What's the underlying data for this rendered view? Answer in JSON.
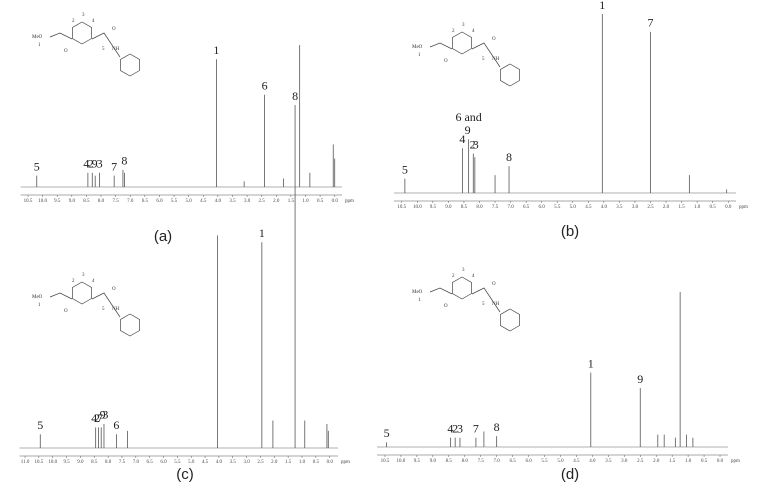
{
  "chart_data": [
    {
      "type": "stem",
      "panel_label": "(a)",
      "x_label": "ppm",
      "xlim": [
        10.75,
        -0.25
      ],
      "xticks": [
        10.5,
        {
          "value": 10,
          "label": "10.0"
        },
        9.5,
        {
          "value": 9,
          "label": "9.0"
        },
        8.5,
        {
          "value": 8,
          "label": "8.0"
        },
        7.5,
        {
          "value": 7,
          "label": "7.0"
        },
        6.5,
        {
          "value": 6,
          "label": "6.0"
        },
        5.5,
        {
          "value": 5,
          "label": "5.0"
        },
        4.5,
        {
          "value": 4,
          "label": "4.0"
        },
        3.5,
        {
          "value": 3,
          "label": "3.0"
        },
        2.5,
        {
          "value": 2,
          "label": "2.0"
        },
        1.5,
        {
          "value": 1,
          "label": "1.0"
        },
        0.5,
        {
          "value": 0,
          "label": "0.0"
        }
      ],
      "x": [
        10.2,
        8.45,
        8.3,
        8.2,
        8.05,
        7.55,
        7.25,
        7.2,
        4.05,
        3.1,
        2.4,
        1.75,
        1.2,
        0.85,
        0.05,
        0.0
      ],
      "values": [
        0.08,
        0.1,
        0.1,
        0.08,
        0.1,
        0.08,
        0.12,
        0.1,
        0.9,
        0.04,
        0.65,
        0.06,
        1.0,
        0.1,
        0.3,
        0.2
      ],
      "annotations": [
        {
          "text": "5",
          "x": 10.2
        },
        {
          "text": "4",
          "x": 8.5
        },
        {
          "text": "2",
          "x": 8.35
        },
        {
          "text": "9",
          "x": 8.22
        },
        {
          "text": "3",
          "x": 8.05
        },
        {
          "text": "7",
          "x": 7.55
        },
        {
          "text": "8",
          "x": 7.2
        },
        {
          "text": "1",
          "x": 4.05
        },
        {
          "text": "6",
          "x": 2.4
        }
      ],
      "structure_labels": [
        "MeO",
        "1",
        "2",
        "3",
        "4",
        "5",
        "NH",
        "O",
        "O"
      ]
    },
    {
      "type": "stem",
      "panel_label": "(b)",
      "x_label": "ppm",
      "xlim": [
        10.75,
        -0.25
      ],
      "xticks": [
        10.5,
        {
          "value": 10,
          "label": "10.0"
        },
        9.5,
        {
          "value": 9,
          "label": "9.0"
        },
        8.5,
        {
          "value": 8,
          "label": "8.0"
        },
        7.5,
        {
          "value": 7,
          "label": "7.0"
        },
        6.5,
        {
          "value": 6,
          "label": "6.0"
        },
        5.5,
        {
          "value": 5,
          "label": "5.0"
        },
        4.5,
        {
          "value": 4,
          "label": "4.0"
        },
        3.5,
        {
          "value": 3,
          "label": "3.0"
        },
        2.5,
        {
          "value": 2,
          "label": "2.0"
        },
        1.5,
        {
          "value": 1,
          "label": "1.0"
        },
        0.5,
        {
          "value": 0,
          "label": "0.0"
        }
      ],
      "x": [
        10.4,
        8.55,
        8.35,
        8.2,
        8.15,
        7.5,
        7.05,
        4.05,
        2.5,
        1.25,
        0.05
      ],
      "values": [
        0.08,
        0.25,
        0.3,
        0.22,
        0.2,
        0.1,
        0.15,
        1.0,
        0.9,
        0.1,
        0.02
      ],
      "annotations": [
        {
          "text": "5",
          "x": 10.4
        },
        {
          "text": "4",
          "x": 8.55
        },
        {
          "text": "2",
          "x": 8.22
        },
        {
          "text": "3",
          "x": 8.12
        },
        {
          "text": "9",
          "x": 8.38
        },
        {
          "text": "6 and",
          "x": 8.35
        },
        {
          "text": "8",
          "x": 7.05
        },
        {
          "text": "1",
          "x": 4.05
        },
        {
          "text": "7",
          "x": 2.5
        }
      ],
      "structure_labels": [
        "MeO",
        "1",
        "2",
        "3",
        "4",
        "5",
        "NH",
        "O",
        "O"
      ]
    },
    {
      "type": "stem",
      "panel_label": "(c)",
      "x_label": "ppm",
      "xlim": [
        11.2,
        -0.3
      ],
      "xticks": [
        {
          "value": 11,
          "label": "11.0"
        },
        10.5,
        {
          "value": 10,
          "label": "10.0"
        },
        9.5,
        {
          "value": 9,
          "label": "9.0"
        },
        8.5,
        {
          "value": 8,
          "label": "8.0"
        },
        7.5,
        {
          "value": 7,
          "label": "7.0"
        },
        6.5,
        {
          "value": 6,
          "label": "6.0"
        },
        5.5,
        {
          "value": 5,
          "label": "5.0"
        },
        4.5,
        {
          "value": 4,
          "label": "4.0"
        },
        3.5,
        {
          "value": 3,
          "label": "3.0"
        },
        2.5,
        {
          "value": 2,
          "label": "2.0"
        },
        1.5,
        {
          "value": 1,
          "label": "1.0"
        },
        0.5,
        {
          "value": 0,
          "label": "0.0"
        }
      ],
      "x": [
        10.45,
        8.45,
        8.35,
        8.25,
        8.15,
        7.7,
        7.3,
        4.05,
        2.45,
        2.05,
        1.25,
        0.9,
        0.1,
        0.05
      ],
      "values": [
        0.04,
        0.06,
        0.06,
        0.06,
        0.07,
        0.04,
        0.05,
        0.62,
        0.6,
        0.08,
        1.0,
        0.08,
        0.07,
        0.05
      ],
      "annotations": [
        {
          "text": "5",
          "x": 10.45
        },
        {
          "text": "4",
          "x": 8.5
        },
        {
          "text": "2",
          "x": 8.4
        },
        {
          "text": "7",
          "x": 8.3
        },
        {
          "text": "9",
          "x": 8.2
        },
        {
          "text": "3",
          "x": 8.1
        },
        {
          "text": "6",
          "x": 7.7
        },
        {
          "text": "1",
          "x": 2.45
        },
        {
          "text": "8",
          "x": 1.25
        }
      ],
      "structure_labels": [
        "MeO",
        "1",
        "2",
        "3",
        "4",
        "5",
        "NH",
        "O",
        "O"
      ]
    },
    {
      "type": "stem",
      "panel_label": "(d)",
      "x_label": "ppm",
      "xlim": [
        10.75,
        -0.25
      ],
      "xticks": [
        10.5,
        {
          "value": 10,
          "label": "10.0"
        },
        9.5,
        {
          "value": 9,
          "label": "9.0"
        },
        8.5,
        {
          "value": 8,
          "label": "8.0"
        },
        7.5,
        {
          "value": 7,
          "label": "7.0"
        },
        6.5,
        {
          "value": 6,
          "label": "6.0"
        },
        5.5,
        {
          "value": 5,
          "label": "5.0"
        },
        4.5,
        {
          "value": 4,
          "label": "4.0"
        },
        3.5,
        {
          "value": 3,
          "label": "3.0"
        },
        2.5,
        {
          "value": 2,
          "label": "2.0"
        },
        1.5,
        {
          "value": 1,
          "label": "1.0"
        },
        0.5,
        {
          "value": 0,
          "label": "0.0"
        }
      ],
      "x": [
        10.45,
        8.45,
        8.3,
        8.15,
        7.65,
        7.4,
        7.0,
        4.05,
        2.5,
        1.95,
        1.75,
        1.4,
        1.25,
        1.05,
        0.85
      ],
      "values": [
        0.03,
        0.06,
        0.06,
        0.06,
        0.06,
        0.1,
        0.07,
        0.48,
        0.38,
        0.08,
        0.08,
        0.06,
        1.0,
        0.08,
        0.06
      ],
      "annotations": [
        {
          "text": "5",
          "x": 10.45
        },
        {
          "text": "4",
          "x": 8.45
        },
        {
          "text": "2",
          "x": 8.3
        },
        {
          "text": "3",
          "x": 8.15
        },
        {
          "text": "7",
          "x": 7.65
        },
        {
          "text": "8",
          "x": 7.0
        },
        {
          "text": "1",
          "x": 4.05
        },
        {
          "text": "9",
          "x": 2.5
        }
      ],
      "structure_labels": [
        "MeO",
        "1",
        "2",
        "3",
        "4",
        "5",
        "NH",
        "O",
        "O"
      ]
    }
  ]
}
